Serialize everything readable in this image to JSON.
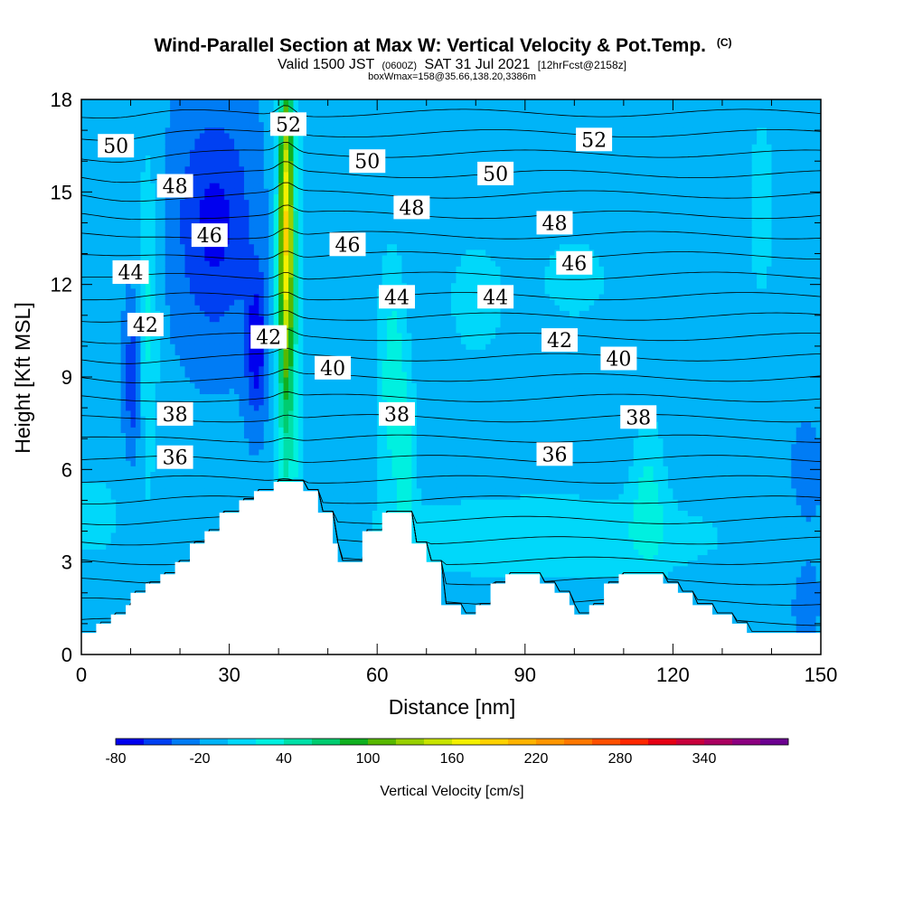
{
  "chart_data": {
    "type": "heatmap",
    "title": "Wind-Parallel Section at Max W: Vertical Velocity & Pot.Temp.",
    "title_mark": "(C)",
    "subtitle_parts": [
      "Valid 1500 JST",
      "(0600Z)",
      "SAT 31 Jul 2021",
      "[12hrFcst@2158z]"
    ],
    "subtitle2": "boxWmax=158@35.66,138.20,3386m",
    "xlabel": "Distance [nm]",
    "ylabel": "Height [Kft MSL]",
    "xlim": [
      0,
      150
    ],
    "ylim": [
      0,
      18
    ],
    "x_ticks": [
      "0",
      "30",
      "60",
      "90",
      "120",
      "150"
    ],
    "y_ticks": [
      "0",
      "3",
      "6",
      "9",
      "12",
      "15",
      "18"
    ],
    "colorbar": {
      "label": "Vertical Velocity [cm/s]",
      "levels": [
        -80,
        -60,
        -40,
        -20,
        0,
        20,
        40,
        60,
        80,
        100,
        120,
        140,
        160,
        180,
        200,
        220,
        240,
        260,
        280,
        300,
        320,
        340,
        360,
        380
      ],
      "tick_labels": [
        "-80",
        "-20",
        "40",
        "100",
        "160",
        "220",
        "280",
        "340"
      ],
      "tick_values": [
        -80,
        -20,
        40,
        100,
        160,
        220,
        280,
        340
      ],
      "colors": [
        "#0000ee",
        "#0040f2",
        "#007cf5",
        "#00b4f8",
        "#00d8fa",
        "#00f0e0",
        "#00e0a8",
        "#00cc70",
        "#10b020",
        "#58b800",
        "#98d000",
        "#c8e400",
        "#f4f000",
        "#ffd200",
        "#ffb400",
        "#ff9600",
        "#ff7800",
        "#ff5000",
        "#ff2800",
        "#e60014",
        "#c8003c",
        "#aa0060",
        "#8c0080",
        "#6c0090"
      ]
    },
    "theta_labels": [
      {
        "text": "52",
        "x": 42,
        "y": 17.2
      },
      {
        "text": "52",
        "x": 104,
        "y": 16.7
      },
      {
        "text": "50",
        "x": 7,
        "y": 16.5
      },
      {
        "text": "50",
        "x": 58,
        "y": 16.0
      },
      {
        "text": "50",
        "x": 84,
        "y": 15.6
      },
      {
        "text": "48",
        "x": 19,
        "y": 15.2
      },
      {
        "text": "48",
        "x": 67,
        "y": 14.5
      },
      {
        "text": "48",
        "x": 96,
        "y": 14.0
      },
      {
        "text": "46",
        "x": 26,
        "y": 13.6
      },
      {
        "text": "46",
        "x": 54,
        "y": 13.3
      },
      {
        "text": "46",
        "x": 100,
        "y": 12.7
      },
      {
        "text": "44",
        "x": 10,
        "y": 12.4
      },
      {
        "text": "44",
        "x": 64,
        "y": 11.6
      },
      {
        "text": "44",
        "x": 84,
        "y": 11.6
      },
      {
        "text": "42",
        "x": 13,
        "y": 10.7
      },
      {
        "text": "42",
        "x": 38,
        "y": 10.3
      },
      {
        "text": "42",
        "x": 97,
        "y": 10.2
      },
      {
        "text": "40",
        "x": 51,
        "y": 9.3
      },
      {
        "text": "40",
        "x": 109,
        "y": 9.6
      },
      {
        "text": "38",
        "x": 19,
        "y": 7.8
      },
      {
        "text": "38",
        "x": 64,
        "y": 7.8
      },
      {
        "text": "38",
        "x": 113,
        "y": 7.7
      },
      {
        "text": "36",
        "x": 19,
        "y": 6.4
      },
      {
        "text": "36",
        "x": 96,
        "y": 6.5
      }
    ]
  }
}
